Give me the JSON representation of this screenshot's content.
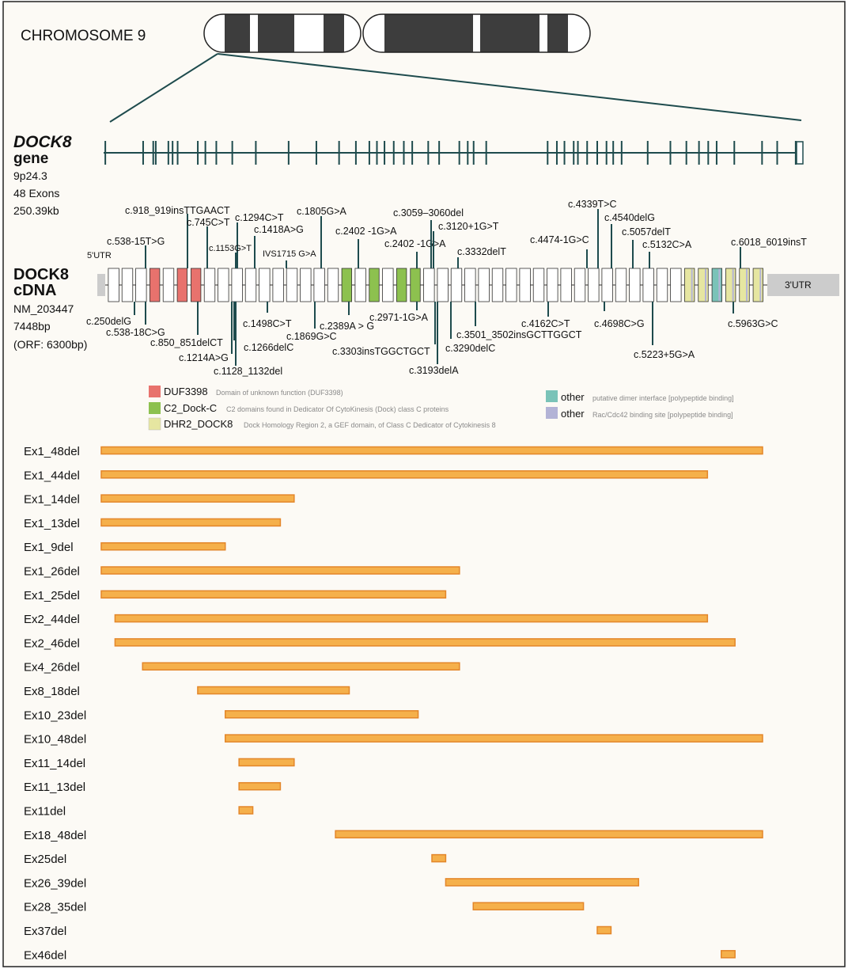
{
  "chromosome": {
    "title": "CHROMOSOME 9"
  },
  "gene": {
    "name": "DOCK8",
    "name_suffix": "gene",
    "band": "9p24.3",
    "exons": "48 Exons",
    "size": "250.39kb",
    "exon_marks": [
      2,
      47,
      59,
      62,
      77,
      82,
      88,
      112,
      121,
      134,
      153,
      181,
      220,
      253,
      280,
      300,
      316,
      325,
      334,
      345,
      357,
      367,
      386,
      399,
      423,
      433,
      440,
      455,
      528,
      539,
      548,
      559,
      564,
      575,
      587,
      598,
      606,
      616,
      647,
      674,
      693,
      708,
      719,
      729,
      750,
      783,
      801,
      823
    ]
  },
  "cdna": {
    "title_line1": "DOCK8",
    "title_line2": "cDNA",
    "accession": "NM_203447",
    "length": "7448bp",
    "orf": "(ORF: 6300bp)",
    "utr5": "5'UTR",
    "utr3": "3'UTR",
    "exon_colors": [
      "w",
      "w",
      "w",
      "r",
      "w",
      "r",
      "r",
      "w",
      "w",
      "w",
      "w",
      "w",
      "w",
      "w",
      "w",
      "w",
      "w",
      "g",
      "w",
      "g",
      "w",
      "g",
      "g",
      "w",
      "w",
      "w",
      "w",
      "w",
      "w",
      "w",
      "w",
      "w",
      "w",
      "w",
      "w",
      "w",
      "w",
      "w",
      "w",
      "w",
      "w",
      "w",
      "y",
      "y",
      "t",
      "y",
      "y",
      "y"
    ],
    "mutations_above": [
      {
        "text": "c.918_919insTTGAACT",
        "pos": 6
      },
      {
        "text": "c.745C>T",
        "pos": 8
      },
      {
        "text": "c.1294C>T",
        "pos": 11
      },
      {
        "text": "c.538-15T>G",
        "pos": 3
      },
      {
        "text": "c.1153G>T",
        "pos": 10
      },
      {
        "text": "c.1418A>G",
        "pos": 13
      },
      {
        "text": "IVS1715 G>A",
        "pos": 16
      },
      {
        "text": "c.1805G>A",
        "pos": 19
      },
      {
        "text": "c.2402 -1G>A",
        "pos": 21
      },
      {
        "text": "c.2402 -1G>A",
        "pos": 26
      },
      {
        "text": "c.3059–3060del",
        "pos": 27
      },
      {
        "text": "c.3120+1G>T",
        "pos": 28
      },
      {
        "text": "c.3332delT",
        "pos": 29
      },
      {
        "text": "c.4474-1G>C",
        "pos": 38
      },
      {
        "text": "c.4339T>C",
        "pos": 40
      },
      {
        "text": "c.4540delG",
        "pos": 41
      },
      {
        "text": "c.5057delT",
        "pos": 43
      },
      {
        "text": "c.5132C>A",
        "pos": 44
      },
      {
        "text": "c.6018_6019insT",
        "pos": 48
      }
    ],
    "mutations_below": [
      {
        "text": "c.250delG",
        "pos": 2
      },
      {
        "text": "c.538-18C>G",
        "pos": 3
      },
      {
        "text": "c.850_851delCT",
        "pos": 7
      },
      {
        "text": "c.1214A>G",
        "pos": 10
      },
      {
        "text": "c.1266delC",
        "pos": 11
      },
      {
        "text": "c.1128_1132del",
        "pos": 10
      },
      {
        "text": "c.1498C>T",
        "pos": 13
      },
      {
        "text": "c.1869G>C",
        "pos": 19
      },
      {
        "text": "c.2389A > G",
        "pos": 21
      },
      {
        "text": "c.2971-1G>A",
        "pos": 26
      },
      {
        "text": "c.3303insTGGCTGCT",
        "pos": 28
      },
      {
        "text": "c.3193delA",
        "pos": 28
      },
      {
        "text": "c.3290delC",
        "pos": 29
      },
      {
        "text": "c.3501_3502insGCTTGGCT",
        "pos": 31
      },
      {
        "text": "c.4162C>T",
        "pos": 37
      },
      {
        "text": "c.4698C>G",
        "pos": 42
      },
      {
        "text": "c.5223+5G>A",
        "pos": 45
      },
      {
        "text": "c.5963G>C",
        "pos": 47
      }
    ]
  },
  "legend": {
    "left": [
      {
        "name": "DUF3398",
        "desc": "Domain of unknown function (DUF3398)",
        "color": "#e8726d"
      },
      {
        "name": "C2_Dock-C",
        "desc": "C2 domains found in Dedicator Of CytoKinesis (Dock) class C proteins",
        "color": "#8dc14f"
      },
      {
        "name": "DHR2_DOCK8",
        "desc": "Dock Homology Region 2, a GEF domain, of Class C Dedicator of Cytokinesis 8",
        "color": "#e6e6a1"
      }
    ],
    "right": [
      {
        "name": "other",
        "desc": "putative dimer interface [polypeptide binding]",
        "color": "#7ac3b8"
      },
      {
        "name": "other",
        "desc": "Rac/Cdc42 binding site [polypeptide binding]",
        "color": "#b3b3d6"
      }
    ]
  },
  "deletions": [
    {
      "label": "Ex1_48del",
      "start": 1,
      "end": 48
    },
    {
      "label": "Ex1_44del",
      "start": 1,
      "end": 44
    },
    {
      "label": "Ex1_14del",
      "start": 1,
      "end": 14
    },
    {
      "label": "Ex1_13del",
      "start": 1,
      "end": 13
    },
    {
      "label": "Ex1_9del",
      "start": 1,
      "end": 9
    },
    {
      "label": "Ex1_26del",
      "start": 1,
      "end": 26
    },
    {
      "label": "Ex1_25del",
      "start": 1,
      "end": 25
    },
    {
      "label": "Ex2_44del",
      "start": 2,
      "end": 44
    },
    {
      "label": "Ex2_46del",
      "start": 2,
      "end": 46
    },
    {
      "label": "Ex4_26del",
      "start": 4,
      "end": 26
    },
    {
      "label": "Ex8_18del",
      "start": 8,
      "end": 18
    },
    {
      "label": "Ex10_23del",
      "start": 10,
      "end": 23
    },
    {
      "label": "Ex10_48del",
      "start": 10,
      "end": 48
    },
    {
      "label": "Ex11_14del",
      "start": 11,
      "end": 14
    },
    {
      "label": "Ex11_13del",
      "start": 11,
      "end": 13
    },
    {
      "label": "Ex11del",
      "start": 11,
      "end": 11
    },
    {
      "label": "Ex18_48del",
      "start": 18,
      "end": 48
    },
    {
      "label": "Ex25del",
      "start": 25,
      "end": 25
    },
    {
      "label": "Ex26_39del",
      "start": 26,
      "end": 39
    },
    {
      "label": "Ex28_35del",
      "start": 28,
      "end": 35
    },
    {
      "label": "Ex37del",
      "start": 37,
      "end": 37
    },
    {
      "label": "Ex46del",
      "start": 46,
      "end": 46
    }
  ],
  "colors": {
    "background": "#fcfaf5",
    "gene_line": "#1e4b4d",
    "bar_fill": "#f5b04b",
    "bar_stroke": "#e3862a",
    "chrom_band": "#3d3d3d",
    "utr": "#cccccc"
  }
}
